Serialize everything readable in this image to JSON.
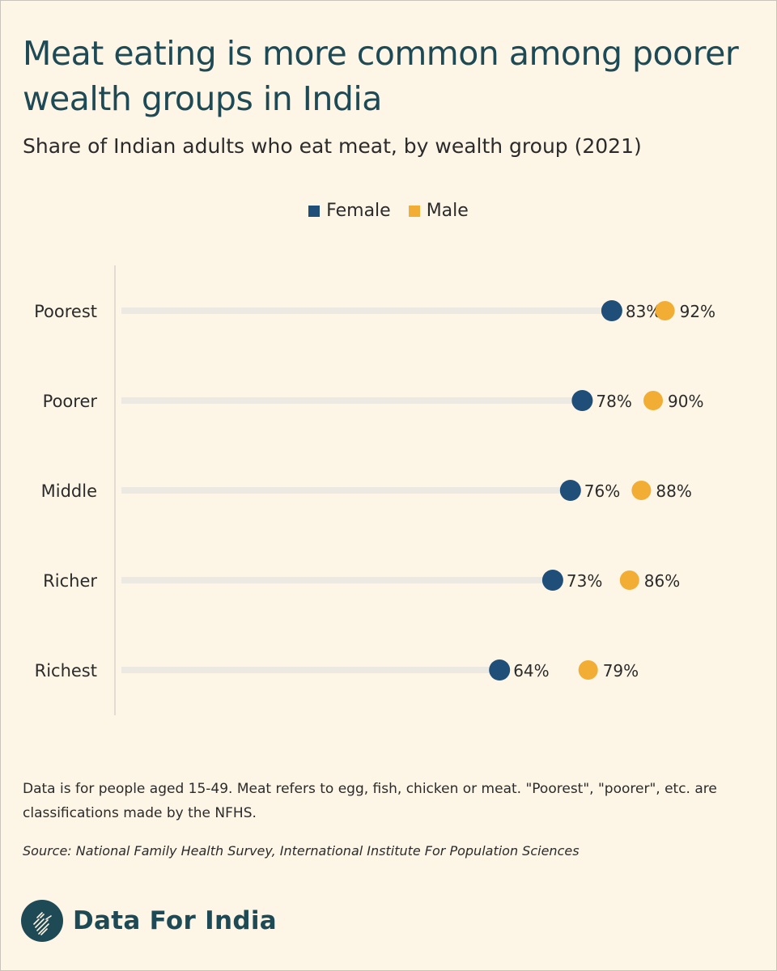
{
  "title": "Meat eating is more common among poorer wealth groups in India",
  "subtitle": "Share of Indian adults who eat meat, by wealth group (2021)",
  "colors": {
    "female": "#1f4e79",
    "male": "#f2ad35",
    "title": "#1d4a55",
    "background": "#fdf5e6"
  },
  "chart_data": {
    "type": "dot",
    "title": "Meat eating is more common among poorer wealth groups in India",
    "subtitle": "Share of Indian adults who eat meat, by wealth group (2021)",
    "categories": [
      "Poorest",
      "Poorer",
      "Middle",
      "Richer",
      "Richest"
    ],
    "series": [
      {
        "name": "Female",
        "color": "#1f4e79",
        "values": [
          83,
          78,
          76,
          73,
          64
        ]
      },
      {
        "name": "Male",
        "color": "#f2ad35",
        "values": [
          92,
          90,
          88,
          86,
          79
        ]
      }
    ],
    "value_suffix": "%",
    "xlim": [
      0,
      100
    ],
    "grid": false,
    "legend_position": "top-center"
  },
  "note": "Data is for people aged 15-49. Meat refers to egg, fish, chicken or meat. \"Poorest\", \"poorer\", etc. are classifications made by the NFHS.",
  "source": "Source: National Family Health Survey, International Institute For Population Sciences",
  "brand": {
    "name": "Data For India",
    "logo_icon": "india-map-icon"
  }
}
